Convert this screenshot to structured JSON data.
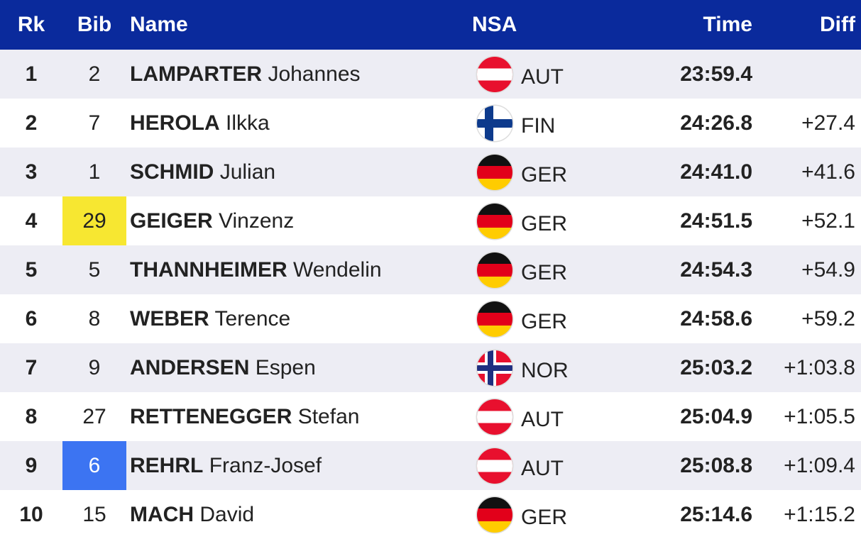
{
  "header": {
    "rk": "Rk",
    "bib": "Bib",
    "name": "Name",
    "nsa": "NSA",
    "time": "Time",
    "diff": "Diff"
  },
  "rows": [
    {
      "rk": 1,
      "bib": 2,
      "surname": "LAMPARTER",
      "given": "Johannes",
      "nsa": "AUT",
      "time": "23:59.4"
    },
    {
      "rk": 2,
      "bib": 7,
      "surname": "HEROLA",
      "given": "Ilkka",
      "nsa": "FIN",
      "time": "24:26.8",
      "diff": "+27.4"
    },
    {
      "rk": 3,
      "bib": 1,
      "surname": "SCHMID",
      "given": "Julian",
      "nsa": "GER",
      "time": "24:41.0",
      "diff": "+41.6"
    },
    {
      "rk": 4,
      "bib": 29,
      "surname": "GEIGER",
      "given": "Vinzenz",
      "nsa": "GER",
      "time": "24:51.5",
      "diff": "+52.1"
    },
    {
      "rk": 5,
      "bib": 5,
      "surname": "THANNHEIMER",
      "given": "Wendelin",
      "nsa": "GER",
      "time": "24:54.3",
      "diff": "+54.9"
    },
    {
      "rk": 6,
      "bib": 8,
      "surname": "WEBER",
      "given": "Terence",
      "nsa": "GER",
      "time": "24:58.6",
      "diff": "+59.2"
    },
    {
      "rk": 7,
      "bib": 9,
      "surname": "ANDERSEN",
      "given": "Espen",
      "nsa": "NOR",
      "time": "25:03.2",
      "diff": "+1:03.8"
    },
    {
      "rk": 8,
      "bib": 27,
      "surname": "RETTENEGGER",
      "given": "Stefan",
      "nsa": "AUT",
      "time": "25:04.9",
      "diff": "+1:05.5"
    },
    {
      "rk": 9,
      "bib": 6,
      "surname": "REHRL",
      "given": "Franz-Josef",
      "nsa": "AUT",
      "time": "25:08.8",
      "diff": "+1:09.4"
    },
    {
      "rk": 10,
      "bib": 15,
      "surname": "MACH",
      "given": "David",
      "nsa": "GER",
      "time": "25:14.6",
      "diff": "+1:15.2"
    }
  ]
}
